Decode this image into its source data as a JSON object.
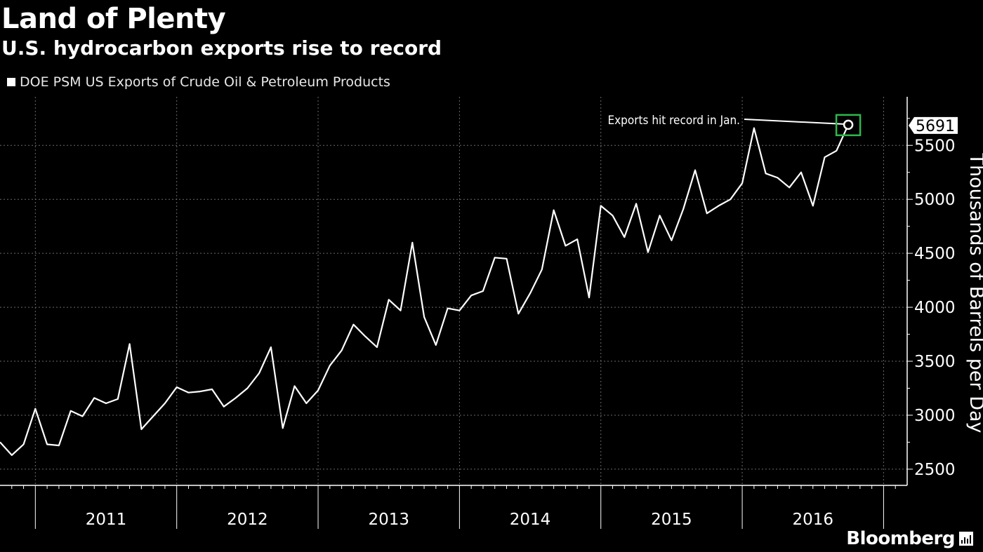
{
  "chart_data": {
    "type": "line",
    "title": "Land of Plenty",
    "subtitle": "U.S. hydrocarbon exports rise to record",
    "ylabel": "Thousands of Barrels per Day",
    "ylim": [
      2350,
      5950
    ],
    "yticks": [
      2500,
      3000,
      3500,
      4000,
      4500,
      5000,
      5500
    ],
    "xlim": [
      "2010-10",
      "2017-03"
    ],
    "year_labels": [
      "2011",
      "2012",
      "2013",
      "2014",
      "2015",
      "2016"
    ],
    "grid": true,
    "legend_position": "top-left",
    "series": [
      {
        "name": "DOE PSM US Exports of Crude Oil & Petroleum Products",
        "color": "#ffffff",
        "points": [
          [
            "2010-10",
            2750
          ],
          [
            "2010-11",
            2630
          ],
          [
            "2010-12",
            2730
          ],
          [
            "2011-01",
            3060
          ],
          [
            "2011-02",
            2730
          ],
          [
            "2011-03",
            2720
          ],
          [
            "2011-04",
            3040
          ],
          [
            "2011-05",
            2990
          ],
          [
            "2011-06",
            3160
          ],
          [
            "2011-07",
            3110
          ],
          [
            "2011-08",
            3150
          ],
          [
            "2011-09",
            3660
          ],
          [
            "2011-10",
            2870
          ],
          [
            "2011-11",
            2990
          ],
          [
            "2011-12",
            3110
          ],
          [
            "2012-01",
            3260
          ],
          [
            "2012-02",
            3210
          ],
          [
            "2012-03",
            3220
          ],
          [
            "2012-04",
            3240
          ],
          [
            "2012-05",
            3080
          ],
          [
            "2012-06",
            3160
          ],
          [
            "2012-07",
            3250
          ],
          [
            "2012-08",
            3390
          ],
          [
            "2012-09",
            3630
          ],
          [
            "2012-10",
            2880
          ],
          [
            "2012-11",
            3270
          ],
          [
            "2012-12",
            3110
          ],
          [
            "2013-01",
            3230
          ],
          [
            "2013-02",
            3460
          ],
          [
            "2013-03",
            3600
          ],
          [
            "2013-04",
            3840
          ],
          [
            "2013-05",
            3730
          ],
          [
            "2013-06",
            3630
          ],
          [
            "2013-07",
            4070
          ],
          [
            "2013-08",
            3970
          ],
          [
            "2013-09",
            4600
          ],
          [
            "2013-10",
            3910
          ],
          [
            "2013-11",
            3650
          ],
          [
            "2013-12",
            3990
          ],
          [
            "2014-01",
            3970
          ],
          [
            "2014-02",
            4110
          ],
          [
            "2014-03",
            4150
          ],
          [
            "2014-04",
            4460
          ],
          [
            "2014-05",
            4450
          ],
          [
            "2014-06",
            3940
          ],
          [
            "2014-07",
            4130
          ],
          [
            "2014-08",
            4350
          ],
          [
            "2014-09",
            4900
          ],
          [
            "2014-10",
            4570
          ],
          [
            "2014-11",
            4630
          ],
          [
            "2014-12",
            4090
          ],
          [
            "2015-01",
            4940
          ],
          [
            "2015-02",
            4850
          ],
          [
            "2015-03",
            4650
          ],
          [
            "2015-04",
            4960
          ],
          [
            "2015-05",
            4510
          ],
          [
            "2015-06",
            4850
          ],
          [
            "2015-07",
            4620
          ],
          [
            "2015-08",
            4910
          ],
          [
            "2015-09",
            5270
          ],
          [
            "2015-10",
            4870
          ],
          [
            "2015-11",
            4940
          ],
          [
            "2015-12",
            5000
          ],
          [
            "2016-01",
            5150
          ],
          [
            "2016-02",
            5660
          ],
          [
            "2016-03",
            5240
          ],
          [
            "2016-04",
            5200
          ],
          [
            "2016-05",
            5110
          ],
          [
            "2016-06",
            5250
          ],
          [
            "2016-07",
            4940
          ],
          [
            "2016-08",
            5390
          ],
          [
            "2016-09",
            5450
          ],
          [
            "2016-10",
            5691
          ]
        ]
      }
    ],
    "annotation": {
      "text": "Exports hit record in Jan.",
      "at": "2016-10",
      "value": 5691,
      "value_label": "5691",
      "highlight_color": "#2db84d"
    }
  },
  "brand": {
    "name": "Bloomberg"
  }
}
